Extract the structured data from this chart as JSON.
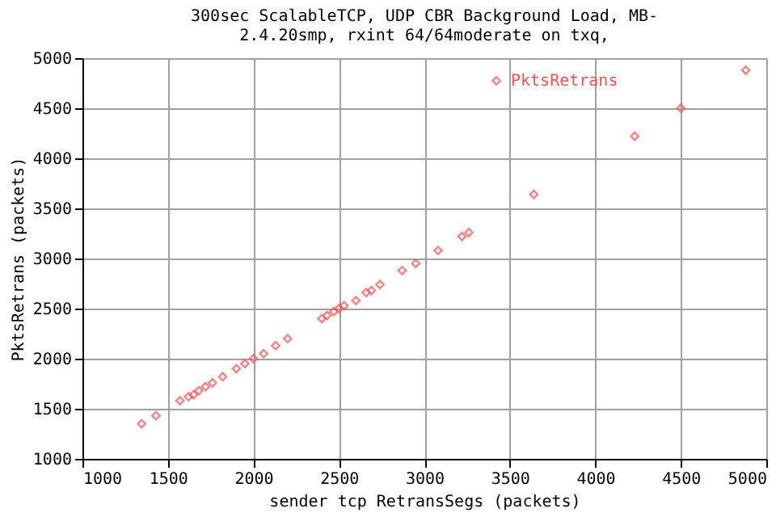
{
  "chart_data": {
    "type": "scatter",
    "title": [
      "300sec ScalableTCP, UDP CBR Background Load, MB-",
      "2.4.20smp, rxint 64/64moderate on txq,"
    ],
    "xlabel": "sender tcp RetransSegs (packets)",
    "ylabel": "PktsRetrans (packets)",
    "x": [
      1346,
      1430,
      1570,
      1620,
      1650,
      1680,
      1720,
      1760,
      1820,
      1900,
      1950,
      2000,
      2060,
      2130,
      2200,
      2400,
      2430,
      2470,
      2500,
      2530,
      2600,
      2660,
      2690,
      2740,
      2870,
      2950,
      3080,
      3220,
      3260,
      3640,
      4230,
      4500,
      4880
    ],
    "series": [
      {
        "name": "PktsRetrans",
        "color": "#ff5050",
        "values": [
          1350,
          1430,
          1580,
          1620,
          1640,
          1680,
          1720,
          1760,
          1820,
          1900,
          1950,
          2000,
          2050,
          2130,
          2200,
          2400,
          2430,
          2470,
          2500,
          2530,
          2580,
          2660,
          2680,
          2740,
          2880,
          2950,
          3080,
          3220,
          3260,
          3640,
          4220,
          4500,
          4880
        ]
      }
    ],
    "xlim": [
      1000,
      5000
    ],
    "xticks": [
      1000,
      1500,
      2000,
      2500,
      3000,
      3500,
      4000,
      4500,
      5000
    ],
    "ylim": [
      1000,
      5000
    ],
    "yticks": [
      1000,
      1500,
      2000,
      2500,
      3000,
      3500,
      4000,
      4500,
      5000
    ],
    "grid": true,
    "legend": "top right",
    "marker": "diamond"
  }
}
